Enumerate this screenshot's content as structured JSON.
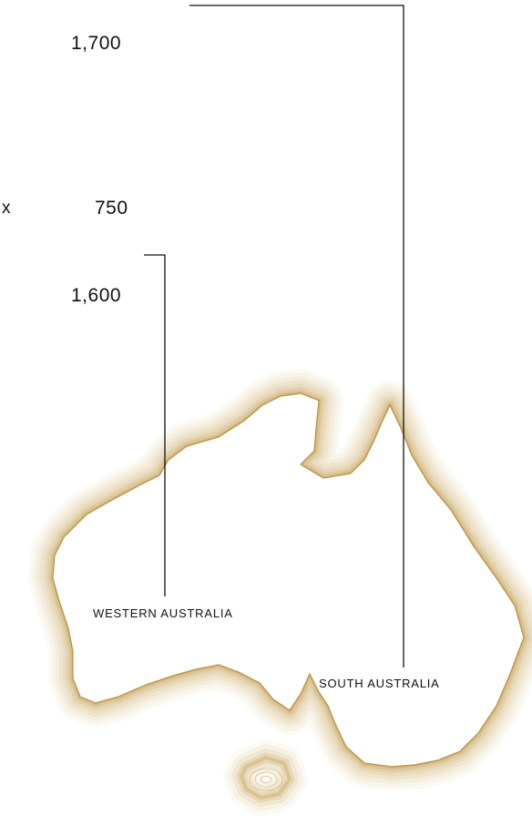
{
  "figure": {
    "values": {
      "top": "1,700",
      "middle": "750",
      "lower": "1,600"
    },
    "operator": "x",
    "regions": {
      "western_australia": "WESTERN AUSTRALIA",
      "south_australia": "SOUTH AUSTRALIA"
    }
  },
  "colors": {
    "contour": "#c9a45a",
    "line": "#111111",
    "background": "#ffffff"
  }
}
